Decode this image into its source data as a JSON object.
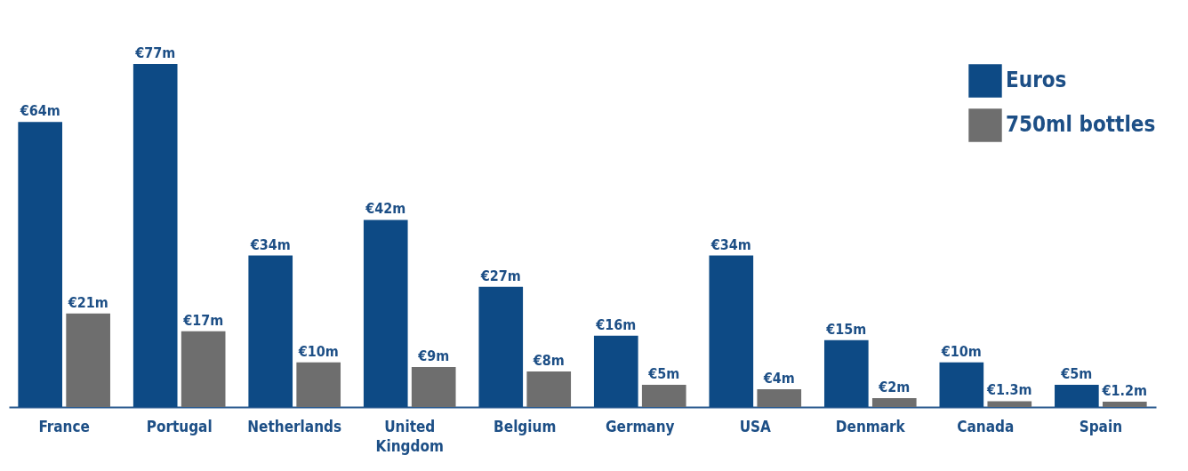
{
  "chart_data": {
    "type": "bar",
    "categories": [
      "France",
      "Portugal",
      "Netherlands",
      "United Kingdom",
      "Belgium",
      "Germany",
      "USA",
      "Denmark",
      "Canada",
      "Spain"
    ],
    "series": [
      {
        "name": "Euros",
        "color": "#0d4a85",
        "values": [
          64,
          77,
          34,
          42,
          27,
          16,
          34,
          15,
          10,
          5
        ],
        "value_labels": [
          "€64m",
          "€77m",
          "€34m",
          "€42m",
          "€27m",
          "€16m",
          "€34m",
          "€15m",
          "€10m",
          "€5m"
        ]
      },
      {
        "name": "750ml bottles",
        "color": "#6e6e6e",
        "values": [
          21,
          17,
          10,
          9,
          8,
          5,
          4,
          2,
          1.3,
          1.2
        ],
        "value_labels": [
          "€21m",
          "€17m",
          "€10m",
          "€9m",
          "€8m",
          "€5m",
          "€4m",
          "€2m",
          "€1.3m",
          "€1.2m"
        ]
      }
    ],
    "legend": "top right"
  }
}
